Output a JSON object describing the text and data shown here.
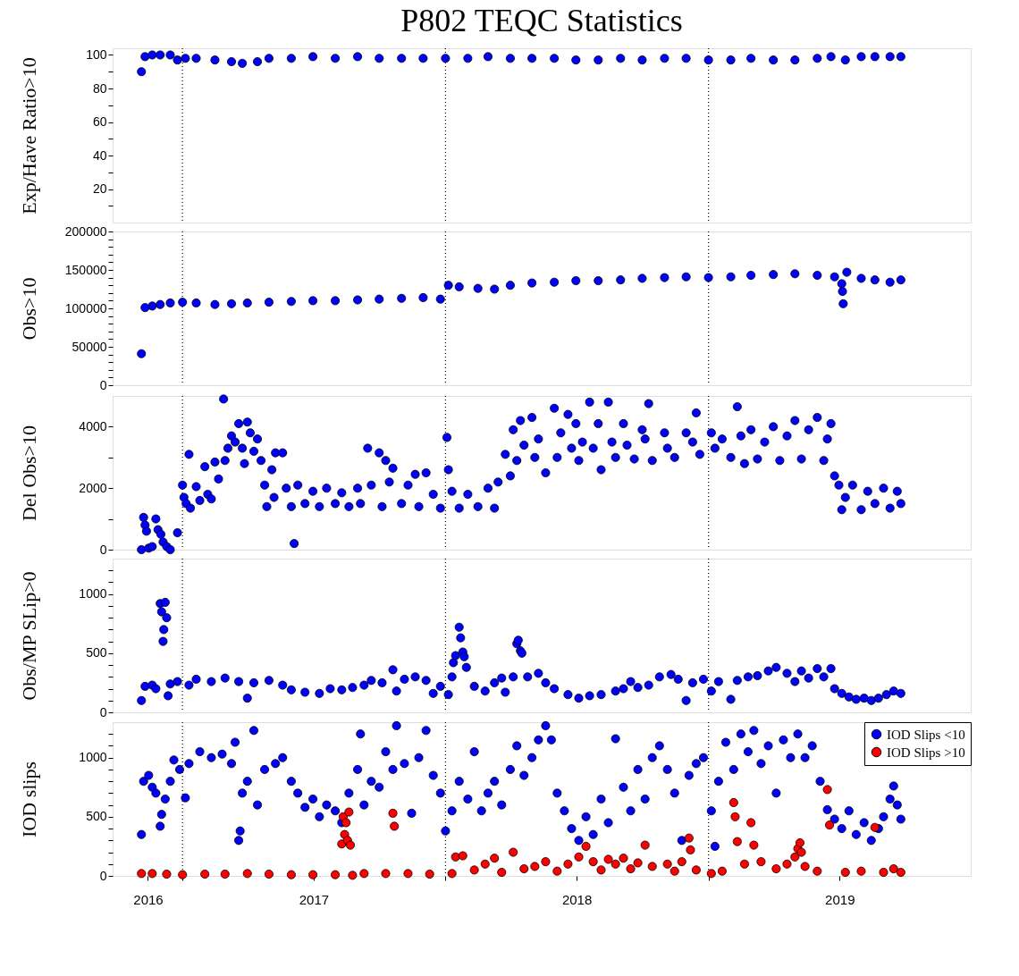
{
  "chart_data": [
    {
      "type": "scatter",
      "title": "P802 TEQC Statistics",
      "ylabel": "Exp/Have Ratio>10",
      "marker": "circle",
      "grid": false,
      "tick_labels": "y",
      "xlim": [
        "2016-09-26",
        "2019-12-31"
      ],
      "ylim": [
        0,
        104
      ],
      "yticks": [
        {
          "value": 10,
          "label": null
        },
        20,
        {
          "value": 30,
          "label": null
        },
        40,
        {
          "value": 50,
          "label": null
        },
        60,
        {
          "value": 70,
          "label": null
        },
        80,
        {
          "value": 90,
          "label": null
        },
        100
      ],
      "ref_lines": [
        {
          "axis": "x",
          "value": "2017-01-01",
          "label": null,
          "color": "#000000",
          "line_style": "dotted"
        },
        {
          "axis": "x",
          "value": "2018-01-01",
          "label": null,
          "color": "#000000",
          "line_style": "dotted"
        },
        {
          "axis": "x",
          "value": "2019-01-01",
          "label": null,
          "color": "#000000",
          "line_style": "dotted"
        }
      ],
      "series": [
        {
          "color": "#0000ff",
          "x": [
            "2016-11-05",
            "2016-11-10",
            "2016-11-20",
            "2016-12-01",
            "2016-12-15",
            "2016-12-25",
            "2017-01-05",
            "2017-01-20",
            "2017-02-15",
            "2017-03-10",
            "2017-03-25",
            "2017-04-15",
            "2017-05-01",
            "2017-06-01",
            "2017-07-01",
            "2017-08-01",
            "2017-09-01",
            "2017-10-01",
            "2017-11-01",
            "2017-12-01",
            "2018-01-01",
            "2018-02-01",
            "2018-03-01",
            "2018-04-01",
            "2018-05-01",
            "2018-06-01",
            "2018-07-01",
            "2018-08-01",
            "2018-09-01",
            "2018-10-01",
            "2018-11-01",
            "2018-12-01",
            "2019-01-01",
            "2019-02-01",
            "2019-03-01",
            "2019-04-01",
            "2019-05-01",
            "2019-06-01",
            "2019-06-20",
            "2019-07-10",
            "2019-08-01",
            "2019-08-20",
            "2019-09-10",
            "2019-09-25"
          ],
          "values": [
            90,
            99,
            100,
            100,
            100,
            97,
            98,
            98,
            97,
            96,
            95,
            96,
            98,
            98,
            99,
            98,
            99,
            98,
            98,
            98,
            98,
            98,
            99,
            98,
            98,
            98,
            97,
            97,
            98,
            97,
            98,
            98,
            97,
            97,
            98,
            97,
            97,
            98,
            99,
            97,
            99,
            99,
            99,
            99
          ]
        }
      ]
    },
    {
      "type": "scatter",
      "ylabel": "Obs>10",
      "marker": "circle",
      "grid": false,
      "tick_labels": "y",
      "xlim": [
        "2016-09-26",
        "2019-12-31"
      ],
      "ylim": [
        0,
        200000
      ],
      "yticks": [
        0,
        {
          "value": 10000,
          "label": null
        },
        {
          "value": 20000,
          "label": null
        },
        {
          "value": 30000,
          "label": null
        },
        {
          "value": 40000,
          "label": null
        },
        50000,
        {
          "value": 60000,
          "label": null
        },
        {
          "value": 70000,
          "label": null
        },
        {
          "value": 80000,
          "label": null
        },
        {
          "value": 90000,
          "label": null
        },
        100000,
        {
          "value": 110000,
          "label": null
        },
        {
          "value": 120000,
          "label": null
        },
        {
          "value": 130000,
          "label": null
        },
        {
          "value": 140000,
          "label": null
        },
        150000,
        {
          "value": 160000,
          "label": null
        },
        {
          "value": 170000,
          "label": null
        },
        {
          "value": 180000,
          "label": null
        },
        {
          "value": 190000,
          "label": null
        },
        200000
      ],
      "ref_lines": [
        {
          "axis": "x",
          "value": "2017-01-01",
          "label": null,
          "color": "#000000",
          "line_style": "dotted"
        },
        {
          "axis": "x",
          "value": "2018-01-01",
          "label": null,
          "color": "#000000",
          "line_style": "dotted"
        },
        {
          "axis": "x",
          "value": "2019-01-01",
          "label": null,
          "color": "#000000",
          "line_style": "dotted"
        }
      ],
      "series": [
        {
          "color": "#0000ff",
          "x": [
            "2016-11-05",
            "2016-11-10",
            "2016-11-20",
            "2016-12-01",
            "2016-12-15",
            "2017-01-01",
            "2017-01-20",
            "2017-02-15",
            "2017-03-10",
            "2017-04-01",
            "2017-05-01",
            "2017-06-01",
            "2017-07-01",
            "2017-08-01",
            "2017-09-01",
            "2017-10-01",
            "2017-11-01",
            "2017-12-01",
            "2017-12-25",
            "2018-01-05",
            "2018-01-20",
            "2018-02-15",
            "2018-03-10",
            "2018-04-01",
            "2018-05-01",
            "2018-06-01",
            "2018-07-01",
            "2018-08-01",
            "2018-09-01",
            "2018-10-01",
            "2018-11-01",
            "2018-12-01",
            "2019-01-01",
            "2019-02-01",
            "2019-03-01",
            "2019-04-01",
            "2019-05-01",
            "2019-06-01",
            "2019-06-25",
            "2019-07-05",
            "2019-07-06",
            "2019-07-07",
            "2019-07-12",
            "2019-08-01",
            "2019-08-20",
            "2019-09-10",
            "2019-09-25"
          ],
          "values": [
            41000,
            101000,
            103000,
            105000,
            107000,
            108000,
            107000,
            105000,
            106000,
            107000,
            108000,
            109000,
            110000,
            110000,
            111000,
            112000,
            113000,
            114000,
            112000,
            130000,
            128000,
            126000,
            125000,
            130000,
            133000,
            134000,
            136000,
            136000,
            137000,
            139000,
            140000,
            141000,
            140000,
            141000,
            143000,
            144000,
            145000,
            143000,
            141000,
            132000,
            122000,
            106000,
            147000,
            139000,
            137000,
            134000,
            137000
          ]
        }
      ]
    },
    {
      "type": "scatter",
      "ylabel": "Del Obs>10",
      "marker": "circle",
      "grid": false,
      "tick_labels": "y",
      "xlim": [
        "2016-09-26",
        "2019-12-31"
      ],
      "ylim": [
        0,
        5000
      ],
      "yticks": [
        0,
        {
          "value": 1000,
          "label": null
        },
        2000,
        {
          "value": 3000,
          "label": null
        },
        4000
      ],
      "ref_lines": [
        {
          "axis": "x",
          "value": "2017-01-01",
          "label": null,
          "color": "#000000",
          "line_style": "dotted"
        },
        {
          "axis": "x",
          "value": "2018-01-01",
          "label": null,
          "color": "#000000",
          "line_style": "dotted"
        },
        {
          "axis": "x",
          "value": "2019-01-01",
          "label": null,
          "color": "#000000",
          "line_style": "dotted"
        }
      ],
      "series": [
        {
          "color": "#0000ff",
          "x": [
            "2016-11-05",
            "2016-11-08",
            "2016-11-10",
            "2016-11-12",
            "2016-11-15",
            "2016-11-20",
            "2016-11-25",
            "2016-11-28",
            "2016-12-02",
            "2016-12-05",
            "2016-12-10",
            "2016-12-15",
            "2016-12-25",
            "2017-01-01",
            "2017-01-03",
            "2017-01-06",
            "2017-01-10",
            "2017-01-12",
            "2017-01-20",
            "2017-01-25",
            "2017-02-01",
            "2017-02-05",
            "2017-02-10",
            "2017-02-15",
            "2017-02-20",
            "2017-02-27",
            "2017-03-01",
            "2017-03-05",
            "2017-03-10",
            "2017-03-15",
            "2017-03-20",
            "2017-03-25",
            "2017-03-28",
            "2017-04-01",
            "2017-04-05",
            "2017-04-10",
            "2017-04-15",
            "2017-04-20",
            "2017-04-25",
            "2017-04-28",
            "2017-05-05",
            "2017-05-08",
            "2017-05-10",
            "2017-05-20",
            "2017-05-25",
            "2017-06-01",
            "2017-06-05",
            "2017-06-10",
            "2017-06-20",
            "2017-07-01",
            "2017-07-10",
            "2017-07-20",
            "2017-08-01",
            "2017-08-10",
            "2017-08-20",
            "2017-09-01",
            "2017-09-05",
            "2017-09-15",
            "2017-09-20",
            "2017-10-01",
            "2017-10-05",
            "2017-10-10",
            "2017-10-15",
            "2017-10-20",
            "2017-11-01",
            "2017-11-10",
            "2017-11-20",
            "2017-11-25",
            "2017-12-05",
            "2017-12-15",
            "2017-12-25",
            "2018-01-03",
            "2018-01-05",
            "2018-01-10",
            "2018-01-20",
            "2018-02-01",
            "2018-02-15",
            "2018-03-01",
            "2018-03-10",
            "2018-03-15",
            "2018-03-25",
            "2018-04-01",
            "2018-04-05",
            "2018-04-10",
            "2018-04-15",
            "2018-04-20",
            "2018-05-01",
            "2018-05-05",
            "2018-05-10",
            "2018-05-20",
            "2018-06-01",
            "2018-06-05",
            "2018-06-10",
            "2018-06-20",
            "2018-06-25",
            "2018-07-01",
            "2018-07-05",
            "2018-07-10",
            "2018-07-20",
            "2018-07-25",
            "2018-08-01",
            "2018-08-05",
            "2018-08-15",
            "2018-08-20",
            "2018-08-25",
            "2018-09-05",
            "2018-09-10",
            "2018-09-20",
            "2018-10-01",
            "2018-10-05",
            "2018-10-10",
            "2018-10-15",
            "2018-11-01",
            "2018-11-05",
            "2018-11-15",
            "2018-12-01",
            "2018-12-10",
            "2018-12-15",
            "2018-12-20",
            "2019-01-05",
            "2019-01-10",
            "2019-01-20",
            "2019-02-01",
            "2019-02-10",
            "2019-02-15",
            "2019-02-20",
            "2019-03-01",
            "2019-03-10",
            "2019-03-20",
            "2019-04-01",
            "2019-04-10",
            "2019-04-20",
            "2019-05-01",
            "2019-05-10",
            "2019-05-20",
            "2019-06-01",
            "2019-06-10",
            "2019-06-15",
            "2019-06-20",
            "2019-06-25",
            "2019-07-01",
            "2019-07-05",
            "2019-07-10",
            "2019-07-20",
            "2019-08-01",
            "2019-08-10",
            "2019-08-20",
            "2019-09-01",
            "2019-09-10",
            "2019-09-20",
            "2019-09-25"
          ],
          "values": [
            0,
            1050,
            800,
            600,
            50,
            100,
            1000,
            650,
            500,
            250,
            100,
            0,
            550,
            2100,
            1700,
            1500,
            3100,
            1350,
            2050,
            1600,
            2700,
            1800,
            1650,
            2850,
            2300,
            4900,
            2900,
            3300,
            3700,
            3500,
            4100,
            3300,
            2800,
            4150,
            3800,
            3200,
            3600,
            2900,
            2100,
            1400,
            2600,
            1700,
            3150,
            3150,
            2000,
            1400,
            200,
            2100,
            1500,
            1900,
            1400,
            2000,
            1500,
            1850,
            1400,
            2000,
            1500,
            3300,
            2100,
            3150,
            1400,
            2900,
            2200,
            2650,
            1500,
            2100,
            2450,
            1400,
            2500,
            1800,
            1350,
            3650,
            2600,
            1900,
            1350,
            1800,
            1400,
            2000,
            1350,
            2200,
            3100,
            2400,
            3900,
            2900,
            4200,
            3400,
            4300,
            3000,
            3600,
            2500,
            4600,
            3000,
            3800,
            4400,
            3300,
            4100,
            2900,
            3500,
            4800,
            3300,
            4100,
            2600,
            4800,
            3500,
            3000,
            4100,
            3400,
            2950,
            3900,
            3600,
            4750,
            2900,
            3800,
            3300,
            3000,
            3800,
            3500,
            4450,
            3100,
            3800,
            3300,
            3600,
            3000,
            4650,
            3700,
            2800,
            3900,
            2950,
            3500,
            4000,
            2900,
            3700,
            4200,
            2950,
            3900,
            4300,
            2900,
            3600,
            4100,
            2400,
            2100,
            1300,
            1700,
            2100,
            1300,
            1900,
            1500,
            2000,
            1350,
            1900,
            1500
          ]
        }
      ]
    },
    {
      "type": "scatter",
      "ylabel": "Obs/MP SLip>0",
      "marker": "circle",
      "grid": false,
      "tick_labels": "y",
      "xlim": [
        "2016-09-26",
        "2019-12-31"
      ],
      "ylim": [
        0,
        1300
      ],
      "yticks": [
        0,
        {
          "value": 100,
          "label": null
        },
        {
          "value": 200,
          "label": null
        },
        {
          "value": 300,
          "label": null
        },
        {
          "value": 400,
          "label": null
        },
        500,
        {
          "value": 600,
          "label": null
        },
        {
          "value": 700,
          "label": null
        },
        {
          "value": 800,
          "label": null
        },
        {
          "value": 900,
          "label": null
        },
        1000,
        {
          "value": 1100,
          "label": null
        },
        {
          "value": 1200,
          "label": null
        }
      ],
      "ref_lines": [
        {
          "axis": "x",
          "value": "2017-01-01",
          "label": null,
          "color": "#000000",
          "line_style": "dotted"
        },
        {
          "axis": "x",
          "value": "2018-01-01",
          "label": null,
          "color": "#000000",
          "line_style": "dotted"
        },
        {
          "axis": "x",
          "value": "2019-01-01",
          "label": null,
          "color": "#000000",
          "line_style": "dotted"
        }
      ],
      "series": [
        {
          "color": "#0000ff",
          "x": [
            "2016-11-05",
            "2016-11-10",
            "2016-11-20",
            "2016-11-25",
            "2016-12-01",
            "2016-12-03",
            "2016-12-05",
            "2016-12-06",
            "2016-12-08",
            "2016-12-10",
            "2016-12-12",
            "2016-12-15",
            "2016-12-25",
            "2017-01-10",
            "2017-01-20",
            "2017-02-10",
            "2017-03-01",
            "2017-03-20",
            "2017-04-01",
            "2017-04-10",
            "2017-05-01",
            "2017-05-20",
            "2017-06-01",
            "2017-06-20",
            "2017-07-10",
            "2017-07-25",
            "2017-08-10",
            "2017-08-25",
            "2017-09-10",
            "2017-09-20",
            "2017-10-05",
            "2017-10-20",
            "2017-10-25",
            "2017-11-05",
            "2017-11-20",
            "2017-12-05",
            "2017-12-15",
            "2017-12-25",
            "2018-01-05",
            "2018-01-10",
            "2018-01-12",
            "2018-01-15",
            "2018-01-20",
            "2018-01-22",
            "2018-01-25",
            "2018-01-27",
            "2018-01-30",
            "2018-02-10",
            "2018-02-25",
            "2018-03-10",
            "2018-03-20",
            "2018-03-25",
            "2018-04-05",
            "2018-04-10",
            "2018-04-12",
            "2018-04-15",
            "2018-04-17",
            "2018-04-25",
            "2018-05-10",
            "2018-05-20",
            "2018-06-01",
            "2018-06-20",
            "2018-07-05",
            "2018-07-20",
            "2018-08-05",
            "2018-08-25",
            "2018-09-05",
            "2018-09-15",
            "2018-09-25",
            "2018-10-10",
            "2018-10-25",
            "2018-11-10",
            "2018-11-20",
            "2018-12-01",
            "2018-12-10",
            "2018-12-25",
            "2019-01-05",
            "2019-01-15",
            "2019-02-01",
            "2019-02-10",
            "2019-02-25",
            "2019-03-10",
            "2019-03-25",
            "2019-04-05",
            "2019-04-20",
            "2019-05-01",
            "2019-05-10",
            "2019-05-20",
            "2019-06-01",
            "2019-06-10",
            "2019-06-20",
            "2019-06-25",
            "2019-07-05",
            "2019-07-15",
            "2019-07-25",
            "2019-08-05",
            "2019-08-15",
            "2019-08-25",
            "2019-09-05",
            "2019-09-15",
            "2019-09-25"
          ],
          "values": [
            100,
            220,
            230,
            200,
            920,
            850,
            600,
            700,
            930,
            800,
            140,
            240,
            260,
            230,
            280,
            260,
            290,
            260,
            120,
            250,
            270,
            230,
            190,
            170,
            160,
            200,
            190,
            210,
            230,
            270,
            250,
            360,
            180,
            280,
            300,
            270,
            160,
            220,
            150,
            300,
            420,
            480,
            720,
            630,
            510,
            470,
            380,
            220,
            180,
            250,
            290,
            170,
            300,
            580,
            610,
            520,
            500,
            300,
            330,
            250,
            200,
            150,
            120,
            140,
            150,
            180,
            200,
            260,
            210,
            230,
            300,
            320,
            280,
            100,
            250,
            280,
            180,
            260,
            110,
            270,
            300,
            310,
            350,
            380,
            330,
            260,
            350,
            290,
            370,
            300,
            370,
            200,
            160,
            130,
            110,
            120,
            100,
            120,
            150,
            180,
            160
          ]
        }
      ]
    },
    {
      "type": "scatter",
      "ylabel": "IOD slips",
      "marker": "circle",
      "grid": false,
      "legend": "top right",
      "xlim": [
        "2016-09-26",
        "2019-12-31"
      ],
      "xticks": [
        {
          "value": "2016-11-14",
          "label": "2016"
        },
        {
          "value": "2017-01-01",
          "label": null
        },
        {
          "value": "2017-07-02",
          "label": "2017"
        },
        {
          "value": "2018-01-01",
          "label": null
        },
        {
          "value": "2018-07-02",
          "label": "2018"
        },
        {
          "value": "2019-01-01",
          "label": null
        },
        {
          "value": "2019-07-02",
          "label": "2019"
        }
      ],
      "ylim": [
        0,
        1300
      ],
      "yticks": [
        0,
        {
          "value": 100,
          "label": null
        },
        {
          "value": 200,
          "label": null
        },
        {
          "value": 300,
          "label": null
        },
        {
          "value": 400,
          "label": null
        },
        500,
        {
          "value": 600,
          "label": null
        },
        {
          "value": 700,
          "label": null
        },
        {
          "value": 800,
          "label": null
        },
        {
          "value": 900,
          "label": null
        },
        1000,
        {
          "value": 1100,
          "label": null
        },
        {
          "value": 1200,
          "label": null
        }
      ],
      "ref_lines": [
        {
          "axis": "x",
          "value": "2017-01-01",
          "label": null,
          "color": "#000000",
          "line_style": "dotted"
        },
        {
          "axis": "x",
          "value": "2018-01-01",
          "label": null,
          "color": "#000000",
          "line_style": "dotted"
        },
        {
          "axis": "x",
          "value": "2019-01-01",
          "label": null,
          "color": "#000000",
          "line_style": "dotted"
        }
      ],
      "series": [
        {
          "name": "IOD Slips <10",
          "color": "#0000ff",
          "x": [
            "2016-11-05",
            "2016-11-08",
            "2016-11-15",
            "2016-11-20",
            "2016-11-25",
            "2016-12-01",
            "2016-12-03",
            "2016-12-08",
            "2016-12-15",
            "2016-12-20",
            "2016-12-28",
            "2017-01-05",
            "2017-01-10",
            "2017-01-25",
            "2017-02-10",
            "2017-02-25",
            "2017-03-10",
            "2017-03-15",
            "2017-03-20",
            "2017-03-22",
            "2017-03-25",
            "2017-04-01",
            "2017-04-10",
            "2017-04-15",
            "2017-04-25",
            "2017-05-10",
            "2017-05-20",
            "2017-06-01",
            "2017-06-10",
            "2017-06-20",
            "2017-07-01",
            "2017-07-10",
            "2017-07-20",
            "2017-08-01",
            "2017-08-10",
            "2017-08-20",
            "2017-09-01",
            "2017-09-05",
            "2017-09-10",
            "2017-09-20",
            "2017-10-01",
            "2017-10-10",
            "2017-10-20",
            "2017-10-25",
            "2017-11-05",
            "2017-11-15",
            "2017-11-25",
            "2017-12-05",
            "2017-12-15",
            "2017-12-25",
            "2018-01-01",
            "2018-01-10",
            "2018-01-20",
            "2018-02-01",
            "2018-02-10",
            "2018-02-20",
            "2018-03-01",
            "2018-03-10",
            "2018-03-20",
            "2018-04-01",
            "2018-04-10",
            "2018-04-20",
            "2018-05-01",
            "2018-05-10",
            "2018-05-20",
            "2018-05-28",
            "2018-06-05",
            "2018-06-15",
            "2018-06-25",
            "2018-07-05",
            "2018-07-15",
            "2018-07-25",
            "2018-08-05",
            "2018-08-15",
            "2018-08-25",
            "2018-09-05",
            "2018-09-15",
            "2018-09-25",
            "2018-10-05",
            "2018-10-15",
            "2018-10-25",
            "2018-11-05",
            "2018-11-15",
            "2018-11-25",
            "2018-12-05",
            "2018-12-15",
            "2018-12-25",
            "2019-01-05",
            "2019-01-10",
            "2019-01-15",
            "2019-01-25",
            "2019-02-05",
            "2019-02-15",
            "2019-02-25",
            "2019-03-05",
            "2019-03-15",
            "2019-03-25",
            "2019-04-05",
            "2019-04-15",
            "2019-04-25",
            "2019-05-05",
            "2019-05-15",
            "2019-05-25",
            "2019-06-05",
            "2019-06-15",
            "2019-06-25",
            "2019-07-05",
            "2019-07-15",
            "2019-07-25",
            "2019-08-05",
            "2019-08-15",
            "2019-08-25",
            "2019-09-01",
            "2019-09-10",
            "2019-09-15",
            "2019-09-20",
            "2019-09-25"
          ],
          "values": [
            350,
            800,
            850,
            750,
            700,
            420,
            520,
            650,
            800,
            980,
            900,
            660,
            950,
            1050,
            1000,
            1030,
            950,
            1130,
            300,
            380,
            700,
            800,
            1230,
            600,
            900,
            950,
            1000,
            800,
            700,
            580,
            650,
            500,
            600,
            550,
            450,
            700,
            900,
            1200,
            600,
            800,
            750,
            1050,
            900,
            1270,
            950,
            530,
            1000,
            1230,
            850,
            700,
            380,
            550,
            800,
            650,
            1050,
            550,
            700,
            800,
            600,
            900,
            1100,
            850,
            1000,
            1150,
            1270,
            1150,
            700,
            550,
            400,
            300,
            500,
            350,
            650,
            450,
            1160,
            750,
            550,
            900,
            650,
            1000,
            1100,
            900,
            700,
            300,
            850,
            950,
            1000,
            550,
            250,
            800,
            1130,
            900,
            1200,
            1050,
            1230,
            950,
            1100,
            700,
            1150,
            1000,
            1200,
            1000,
            1100,
            800,
            560,
            480,
            400,
            550,
            350,
            450,
            300,
            400,
            500,
            650,
            760,
            600,
            480
          ]
        },
        {
          "name": "IOD Slips >10",
          "color": "#ff0000",
          "x": [
            "2016-11-05",
            "2016-11-20",
            "2016-12-10",
            "2017-01-01",
            "2017-02-01",
            "2017-03-01",
            "2017-04-01",
            "2017-05-01",
            "2017-06-01",
            "2017-07-01",
            "2017-08-01",
            "2017-08-10",
            "2017-08-12",
            "2017-08-14",
            "2017-08-16",
            "2017-08-18",
            "2017-08-20",
            "2017-08-22",
            "2017-08-25",
            "2017-09-10",
            "2017-10-10",
            "2017-10-20",
            "2017-10-22",
            "2017-11-10",
            "2017-12-10",
            "2018-01-10",
            "2018-01-15",
            "2018-01-25",
            "2018-02-10",
            "2018-02-25",
            "2018-03-10",
            "2018-03-20",
            "2018-04-05",
            "2018-04-20",
            "2018-05-05",
            "2018-05-20",
            "2018-06-05",
            "2018-06-20",
            "2018-07-05",
            "2018-07-15",
            "2018-07-25",
            "2018-08-05",
            "2018-08-15",
            "2018-08-25",
            "2018-09-05",
            "2018-09-15",
            "2018-09-25",
            "2018-10-05",
            "2018-10-15",
            "2018-11-05",
            "2018-11-15",
            "2018-11-25",
            "2018-12-05",
            "2018-12-07",
            "2018-12-15",
            "2019-01-05",
            "2019-01-20",
            "2019-02-05",
            "2019-02-07",
            "2019-02-10",
            "2019-02-20",
            "2019-03-01",
            "2019-03-05",
            "2019-03-15",
            "2019-04-05",
            "2019-04-20",
            "2019-05-01",
            "2019-05-05",
            "2019-05-08",
            "2019-05-10",
            "2019-05-15",
            "2019-06-01",
            "2019-06-15",
            "2019-06-18",
            "2019-07-10",
            "2019-08-01",
            "2019-08-20",
            "2019-09-01",
            "2019-09-15",
            "2019-09-25"
          ],
          "values": [
            20,
            20,
            15,
            10,
            15,
            15,
            20,
            15,
            10,
            10,
            10,
            270,
            500,
            350,
            450,
            300,
            540,
            260,
            5,
            20,
            20,
            530,
            420,
            20,
            15,
            20,
            160,
            170,
            50,
            100,
            150,
            30,
            200,
            60,
            80,
            120,
            40,
            100,
            160,
            250,
            120,
            50,
            140,
            100,
            150,
            60,
            110,
            260,
            80,
            100,
            40,
            120,
            320,
            220,
            50,
            20,
            40,
            620,
            500,
            290,
            100,
            450,
            260,
            120,
            60,
            100,
            160,
            230,
            280,
            200,
            80,
            40,
            730,
            430,
            30,
            40,
            410,
            30,
            60,
            30
          ]
        }
      ]
    }
  ]
}
